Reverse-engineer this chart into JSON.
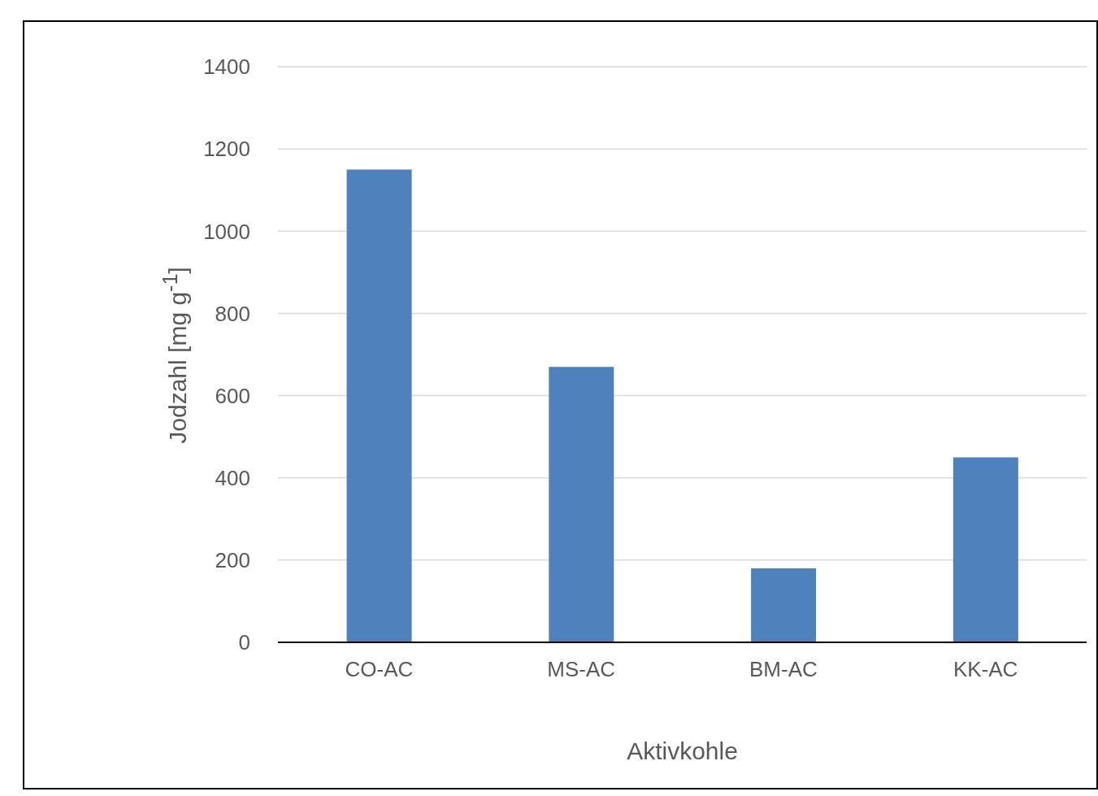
{
  "chart_data": {
    "type": "bar",
    "xlabel": "Aktivkohle",
    "ylabel": "Jodzahl [mg g$^{-1}$]",
    "categories": [
      "CO-AC",
      "MS-AC",
      "BM-AC",
      "KK-AC"
    ],
    "values": [
      1150,
      670,
      180,
      450
    ],
    "color": "#4f81bd",
    "ylim": [
      0,
      1400
    ],
    "yticks": [
      0,
      200,
      400,
      600,
      800,
      1000,
      1200,
      1400
    ],
    "grid": "y"
  }
}
